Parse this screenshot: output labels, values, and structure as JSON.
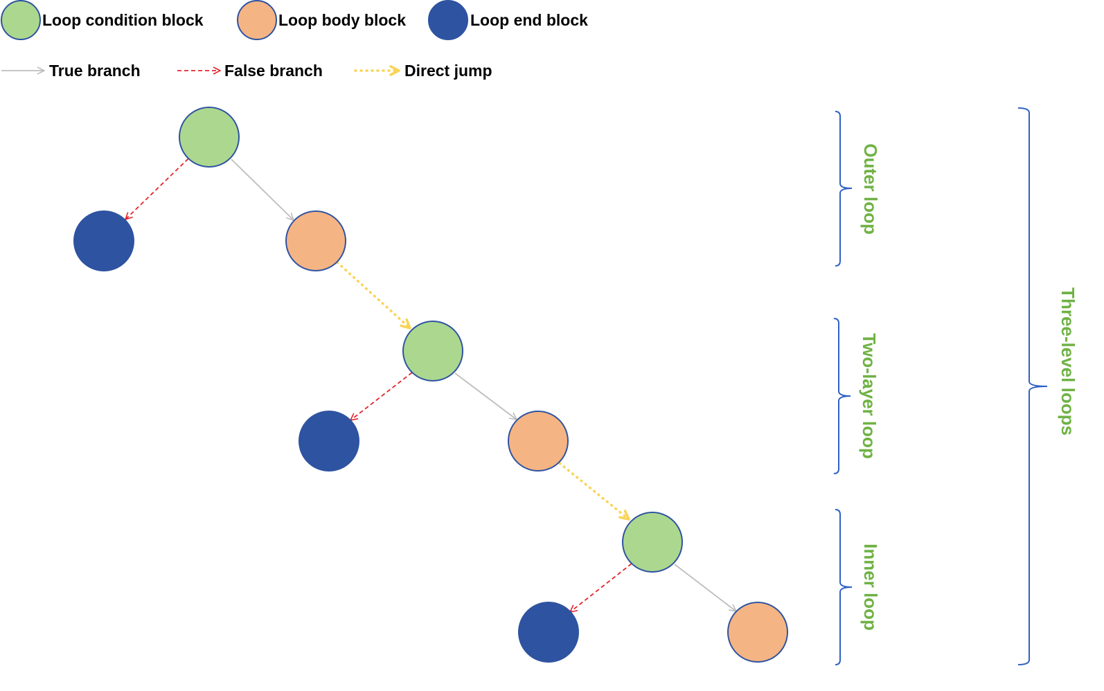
{
  "colors": {
    "condition": "#acd78f",
    "body": "#f5b483",
    "end": "#2e53a1",
    "node_stroke": "#2e53a1",
    "true_branch": "#bdbdbd",
    "false_branch": "#e3242b",
    "direct_jump": "#f9d457",
    "bracket": "#2e60c4",
    "bracket_label": "#6fb244"
  },
  "legend": {
    "condition_label": "Loop condition block",
    "body_label": "Loop body block",
    "end_label": "Loop end block",
    "true_label": "True branch",
    "false_label": "False branch",
    "jump_label": "Direct jump"
  },
  "brackets": {
    "outer": "Outer loop",
    "two_layer": "Two-layer loop",
    "inner": "Inner loop",
    "three_level": "Three-level loops"
  }
}
